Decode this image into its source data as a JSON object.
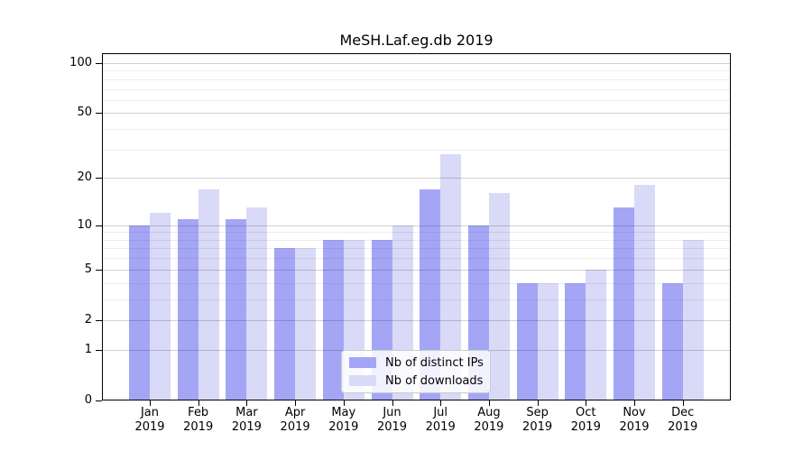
{
  "title": "MeSH.Laf.eg.db 2019",
  "chart_data": {
    "type": "bar",
    "title": "MeSH.Laf.eg.db 2019",
    "xlabel": "",
    "ylabel": "",
    "categories": [
      "Jan",
      "Feb",
      "Mar",
      "Apr",
      "May",
      "Jun",
      "Jul",
      "Aug",
      "Sep",
      "Oct",
      "Nov",
      "Dec"
    ],
    "x_tick_year": "2019",
    "series": [
      {
        "name": "Nb of distinct IPs",
        "color": "#a5a5f6",
        "values": [
          10,
          11,
          11,
          7,
          8,
          8,
          17,
          10,
          4,
          4,
          13,
          4
        ]
      },
      {
        "name": "Nb of downloads",
        "color": "#d9d9f8",
        "values": [
          12,
          17,
          13,
          7,
          8,
          10,
          28,
          16,
          4,
          5,
          18,
          8
        ]
      }
    ],
    "y_axis": {
      "scale": "log1p",
      "ylim": [
        0,
        100
      ],
      "major_ticks": [
        0,
        1,
        2,
        5,
        10,
        20,
        50,
        100
      ],
      "minor_ticks": [
        3,
        4,
        6,
        7,
        8,
        9,
        30,
        40,
        60,
        70,
        80,
        90
      ]
    },
    "legend": {
      "position": "lower center inside"
    },
    "grid": true
  }
}
